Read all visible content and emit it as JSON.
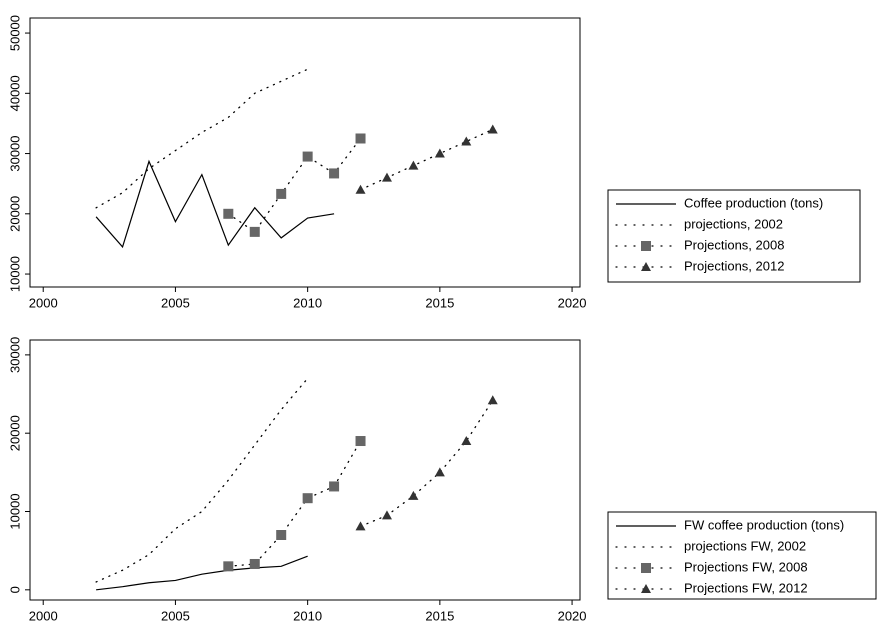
{
  "chart_data": [
    {
      "type": "line",
      "xlim": [
        1999.5,
        2020.3
      ],
      "xticks": [
        2000,
        2005,
        2010,
        2015,
        2020
      ],
      "ylim": [
        7850,
        52500
      ],
      "yticks": [
        10000,
        20000,
        30000,
        40000,
        50000
      ],
      "legend": "right",
      "series": [
        {
          "name": "Coffee production (tons)",
          "color": "#000000",
          "line": "solid",
          "marker": "none",
          "x": [
            2002,
            2003,
            2004,
            2005,
            2006,
            2007,
            2008,
            2009,
            2010,
            2011
          ],
          "values": [
            19500,
            14500,
            28700,
            18700,
            26500,
            14800,
            21000,
            16000,
            19300,
            20000
          ]
        },
        {
          "name": "projections, 2002",
          "color": "#000000",
          "line": "dotted",
          "marker": "none",
          "x": [
            2002,
            2003,
            2004,
            2005,
            2006,
            2007,
            2008,
            2009,
            2010
          ],
          "values": [
            21000,
            23500,
            27500,
            30500,
            33500,
            36000,
            40000,
            42000,
            44000
          ]
        },
        {
          "name": "Projections, 2008",
          "color": "#666666",
          "line": "dotted",
          "marker": "square",
          "x": [
            2007,
            2008,
            2009,
            2010,
            2011,
            2012
          ],
          "values": [
            20000,
            17000,
            23300,
            29500,
            26700,
            32500
          ]
        },
        {
          "name": "Projections, 2012",
          "color": "#333333",
          "line": "dotted",
          "marker": "triangle",
          "x": [
            2012,
            2013,
            2014,
            2015,
            2016,
            2017
          ],
          "values": [
            24000,
            26000,
            28000,
            30000,
            32000,
            34000
          ]
        }
      ]
    },
    {
      "type": "line",
      "xlim": [
        1999.5,
        2020.3
      ],
      "xticks": [
        2000,
        2005,
        2010,
        2015,
        2020
      ],
      "ylim": [
        -1300,
        31900
      ],
      "yticks": [
        0,
        10000,
        20000,
        30000
      ],
      "legend": "right",
      "series": [
        {
          "name": "FW coffee production (tons)",
          "color": "#000000",
          "line": "solid",
          "marker": "none",
          "x": [
            2002,
            2003,
            2004,
            2005,
            2006,
            2007,
            2008,
            2009,
            2010
          ],
          "values": [
            0,
            400,
            900,
            1200,
            2000,
            2500,
            2800,
            3000,
            4300
          ]
        },
        {
          "name": "projections FW, 2002",
          "color": "#000000",
          "line": "dotted",
          "marker": "none",
          "x": [
            2002,
            2003,
            2004,
            2005,
            2006,
            2007,
            2008,
            2009,
            2010
          ],
          "values": [
            1000,
            2500,
            4500,
            7800,
            10000,
            14000,
            18500,
            23000,
            27000
          ]
        },
        {
          "name": "Projections FW, 2008",
          "color": "#666666",
          "line": "dotted",
          "marker": "square",
          "x": [
            2007,
            2008,
            2009,
            2010,
            2011,
            2012
          ],
          "values": [
            3000,
            3300,
            7000,
            11700,
            13200,
            19000
          ]
        },
        {
          "name": "Projections FW, 2012",
          "color": "#333333",
          "line": "dotted",
          "marker": "triangle",
          "x": [
            2012,
            2013,
            2014,
            2015,
            2016,
            2017
          ],
          "values": [
            8100,
            9500,
            12000,
            15000,
            19000,
            24200
          ]
        }
      ]
    }
  ]
}
